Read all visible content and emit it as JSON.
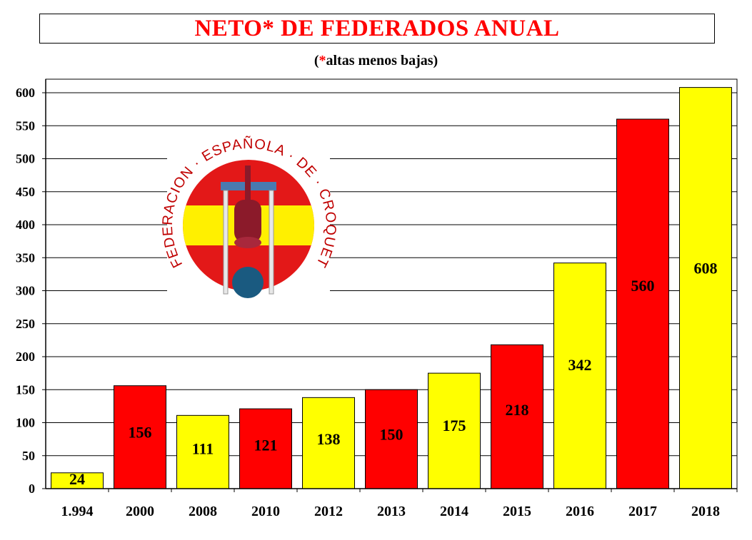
{
  "chart_data": {
    "type": "bar",
    "title": "NETO* DE FEDERADOS ANUAL",
    "subtitle_star": "*",
    "subtitle_prefix": "(",
    "subtitle_rest": "altas menos bajas)",
    "categories": [
      "1.994",
      "2000",
      "2008",
      "2010",
      "2012",
      "2013",
      "2014",
      "2015",
      "2016",
      "2017",
      "2018"
    ],
    "values": [
      24,
      156,
      111,
      121,
      138,
      150,
      175,
      218,
      342,
      560,
      608
    ],
    "bar_colors": [
      "#ffff00",
      "#ff0000",
      "#ffff00",
      "#ff0000",
      "#ffff00",
      "#ff0000",
      "#ffff00",
      "#ff0000",
      "#ffff00",
      "#ff0000",
      "#ffff00"
    ],
    "ylim": [
      0,
      600
    ],
    "yticks": [
      0,
      50,
      100,
      150,
      200,
      250,
      300,
      350,
      400,
      450,
      500,
      550,
      600
    ],
    "xlabel": "",
    "ylabel": "",
    "grid": true
  },
  "logo": {
    "ring_text": "FEDERACION · ESPAÑOLA · DE · CROQUET",
    "colors": {
      "red": "#e31818",
      "yellow": "#fff000",
      "maroon": "#8b1a2a",
      "blue": "#1a5a80",
      "steel": "#4a7ab0"
    }
  }
}
